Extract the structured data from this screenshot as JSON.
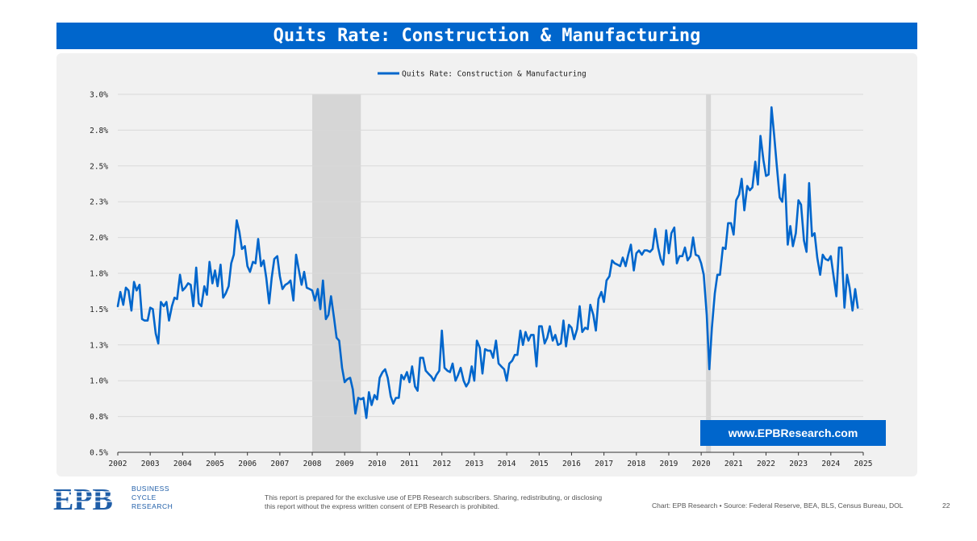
{
  "header": {
    "title": "Quits Rate: Construction & Manufacturing"
  },
  "chart_data": {
    "type": "line",
    "legend": {
      "position": "top-center",
      "entries": [
        "Quits Rate: Construction & Manufacturing"
      ]
    },
    "grid": true,
    "ylim": [
      0.5,
      3.0
    ],
    "xlim": [
      2002,
      2025
    ],
    "y_ticks": [
      "0.5%",
      "0.8%",
      "1.0%",
      "1.3%",
      "1.5%",
      "1.8%",
      "2.0%",
      "2.3%",
      "2.5%",
      "2.8%",
      "3.0%"
    ],
    "x_ticks": [
      "2002",
      "2003",
      "2004",
      "2005",
      "2006",
      "2007",
      "2008",
      "2009",
      "2010",
      "2011",
      "2012",
      "2013",
      "2014",
      "2015",
      "2016",
      "2017",
      "2018",
      "2019",
      "2020",
      "2021",
      "2022",
      "2023",
      "2024",
      "2025"
    ],
    "recessions": [
      [
        2008.0,
        2009.5
      ],
      [
        2020.15,
        2020.3
      ]
    ],
    "series": [
      {
        "name": "Quits Rate: Construction & Manufacturing",
        "color": "#0066cc",
        "points": [
          [
            2002.0,
            1.52
          ],
          [
            2002.08,
            1.62
          ],
          [
            2002.17,
            1.53
          ],
          [
            2002.25,
            1.65
          ],
          [
            2002.33,
            1.63
          ],
          [
            2002.42,
            1.49
          ],
          [
            2002.5,
            1.69
          ],
          [
            2002.58,
            1.63
          ],
          [
            2002.67,
            1.67
          ],
          [
            2002.75,
            1.43
          ],
          [
            2002.83,
            1.42
          ],
          [
            2002.92,
            1.42
          ],
          [
            2003.0,
            1.51
          ],
          [
            2003.08,
            1.5
          ],
          [
            2003.17,
            1.33
          ],
          [
            2003.25,
            1.26
          ],
          [
            2003.33,
            1.55
          ],
          [
            2003.42,
            1.52
          ],
          [
            2003.5,
            1.55
          ],
          [
            2003.58,
            1.42
          ],
          [
            2003.67,
            1.52
          ],
          [
            2003.75,
            1.58
          ],
          [
            2003.83,
            1.57
          ],
          [
            2003.92,
            1.74
          ],
          [
            2004.0,
            1.63
          ],
          [
            2004.08,
            1.65
          ],
          [
            2004.17,
            1.68
          ],
          [
            2004.25,
            1.67
          ],
          [
            2004.33,
            1.52
          ],
          [
            2004.42,
            1.79
          ],
          [
            2004.5,
            1.54
          ],
          [
            2004.58,
            1.52
          ],
          [
            2004.67,
            1.66
          ],
          [
            2004.75,
            1.6
          ],
          [
            2004.83,
            1.83
          ],
          [
            2004.92,
            1.68
          ],
          [
            2005.0,
            1.77
          ],
          [
            2005.08,
            1.66
          ],
          [
            2005.17,
            1.81
          ],
          [
            2005.25,
            1.58
          ],
          [
            2005.33,
            1.61
          ],
          [
            2005.42,
            1.66
          ],
          [
            2005.5,
            1.82
          ],
          [
            2005.58,
            1.88
          ],
          [
            2005.67,
            2.12
          ],
          [
            2005.75,
            2.04
          ],
          [
            2005.83,
            1.92
          ],
          [
            2005.92,
            1.94
          ],
          [
            2006.0,
            1.8
          ],
          [
            2006.08,
            1.76
          ],
          [
            2006.17,
            1.83
          ],
          [
            2006.25,
            1.82
          ],
          [
            2006.33,
            1.99
          ],
          [
            2006.42,
            1.8
          ],
          [
            2006.5,
            1.84
          ],
          [
            2006.58,
            1.72
          ],
          [
            2006.67,
            1.54
          ],
          [
            2006.75,
            1.72
          ],
          [
            2006.83,
            1.85
          ],
          [
            2006.92,
            1.87
          ],
          [
            2007.0,
            1.73
          ],
          [
            2007.08,
            1.64
          ],
          [
            2007.17,
            1.67
          ],
          [
            2007.25,
            1.68
          ],
          [
            2007.33,
            1.7
          ],
          [
            2007.42,
            1.56
          ],
          [
            2007.5,
            1.88
          ],
          [
            2007.58,
            1.78
          ],
          [
            2007.67,
            1.67
          ],
          [
            2007.75,
            1.76
          ],
          [
            2007.83,
            1.65
          ],
          [
            2007.92,
            1.64
          ],
          [
            2008.0,
            1.63
          ],
          [
            2008.08,
            1.56
          ],
          [
            2008.17,
            1.64
          ],
          [
            2008.25,
            1.5
          ],
          [
            2008.33,
            1.7
          ],
          [
            2008.42,
            1.43
          ],
          [
            2008.5,
            1.46
          ],
          [
            2008.58,
            1.59
          ],
          [
            2008.67,
            1.44
          ],
          [
            2008.75,
            1.3
          ],
          [
            2008.83,
            1.28
          ],
          [
            2008.92,
            1.09
          ],
          [
            2009.0,
            0.99
          ],
          [
            2009.08,
            1.01
          ],
          [
            2009.17,
            1.02
          ],
          [
            2009.25,
            0.94
          ],
          [
            2009.33,
            0.77
          ],
          [
            2009.42,
            0.88
          ],
          [
            2009.5,
            0.87
          ],
          [
            2009.58,
            0.88
          ],
          [
            2009.67,
            0.74
          ],
          [
            2009.75,
            0.92
          ],
          [
            2009.83,
            0.83
          ],
          [
            2009.92,
            0.9
          ],
          [
            2010.0,
            0.87
          ],
          [
            2010.08,
            1.02
          ],
          [
            2010.17,
            1.06
          ],
          [
            2010.25,
            1.08
          ],
          [
            2010.33,
            1.02
          ],
          [
            2010.42,
            0.89
          ],
          [
            2010.5,
            0.84
          ],
          [
            2010.58,
            0.88
          ],
          [
            2010.67,
            0.88
          ],
          [
            2010.75,
            1.04
          ],
          [
            2010.83,
            1.01
          ],
          [
            2010.92,
            1.06
          ],
          [
            2011.0,
            0.99
          ],
          [
            2011.08,
            1.1
          ],
          [
            2011.17,
            0.96
          ],
          [
            2011.25,
            0.93
          ],
          [
            2011.33,
            1.16
          ],
          [
            2011.42,
            1.16
          ],
          [
            2011.5,
            1.07
          ],
          [
            2011.58,
            1.05
          ],
          [
            2011.67,
            1.03
          ],
          [
            2011.75,
            1.0
          ],
          [
            2011.83,
            1.04
          ],
          [
            2011.92,
            1.07
          ],
          [
            2012.0,
            1.35
          ],
          [
            2012.08,
            1.09
          ],
          [
            2012.17,
            1.07
          ],
          [
            2012.25,
            1.06
          ],
          [
            2012.33,
            1.12
          ],
          [
            2012.42,
            1.0
          ],
          [
            2012.5,
            1.04
          ],
          [
            2012.58,
            1.09
          ],
          [
            2012.67,
            1.0
          ],
          [
            2012.75,
            0.96
          ],
          [
            2012.83,
            0.99
          ],
          [
            2012.92,
            1.1
          ],
          [
            2013.0,
            1.0
          ],
          [
            2013.08,
            1.28
          ],
          [
            2013.17,
            1.23
          ],
          [
            2013.25,
            1.05
          ],
          [
            2013.33,
            1.22
          ],
          [
            2013.42,
            1.21
          ],
          [
            2013.5,
            1.21
          ],
          [
            2013.58,
            1.16
          ],
          [
            2013.67,
            1.28
          ],
          [
            2013.75,
            1.12
          ],
          [
            2013.83,
            1.1
          ],
          [
            2013.92,
            1.08
          ],
          [
            2014.0,
            1.0
          ],
          [
            2014.08,
            1.12
          ],
          [
            2014.17,
            1.14
          ],
          [
            2014.25,
            1.18
          ],
          [
            2014.33,
            1.18
          ],
          [
            2014.42,
            1.35
          ],
          [
            2014.5,
            1.25
          ],
          [
            2014.58,
            1.34
          ],
          [
            2014.67,
            1.28
          ],
          [
            2014.75,
            1.32
          ],
          [
            2014.83,
            1.32
          ],
          [
            2014.92,
            1.1
          ],
          [
            2015.0,
            1.38
          ],
          [
            2015.08,
            1.38
          ],
          [
            2015.17,
            1.26
          ],
          [
            2015.25,
            1.3
          ],
          [
            2015.33,
            1.38
          ],
          [
            2015.42,
            1.28
          ],
          [
            2015.5,
            1.32
          ],
          [
            2015.58,
            1.25
          ],
          [
            2015.67,
            1.26
          ],
          [
            2015.75,
            1.42
          ],
          [
            2015.83,
            1.24
          ],
          [
            2015.92,
            1.39
          ],
          [
            2016.0,
            1.37
          ],
          [
            2016.08,
            1.29
          ],
          [
            2016.17,
            1.36
          ],
          [
            2016.25,
            1.52
          ],
          [
            2016.33,
            1.34
          ],
          [
            2016.42,
            1.37
          ],
          [
            2016.5,
            1.36
          ],
          [
            2016.58,
            1.53
          ],
          [
            2016.67,
            1.46
          ],
          [
            2016.75,
            1.35
          ],
          [
            2016.83,
            1.57
          ],
          [
            2016.92,
            1.62
          ],
          [
            2017.0,
            1.55
          ],
          [
            2017.08,
            1.7
          ],
          [
            2017.17,
            1.73
          ],
          [
            2017.25,
            1.84
          ],
          [
            2017.33,
            1.82
          ],
          [
            2017.42,
            1.81
          ],
          [
            2017.5,
            1.8
          ],
          [
            2017.58,
            1.86
          ],
          [
            2017.67,
            1.8
          ],
          [
            2017.75,
            1.88
          ],
          [
            2017.83,
            1.95
          ],
          [
            2017.92,
            1.77
          ],
          [
            2018.0,
            1.89
          ],
          [
            2018.08,
            1.91
          ],
          [
            2018.17,
            1.88
          ],
          [
            2018.25,
            1.91
          ],
          [
            2018.33,
            1.91
          ],
          [
            2018.42,
            1.9
          ],
          [
            2018.5,
            1.92
          ],
          [
            2018.58,
            2.06
          ],
          [
            2018.67,
            1.93
          ],
          [
            2018.75,
            1.85
          ],
          [
            2018.83,
            1.81
          ],
          [
            2018.92,
            2.05
          ],
          [
            2019.0,
            1.89
          ],
          [
            2019.08,
            2.03
          ],
          [
            2019.17,
            2.07
          ],
          [
            2019.25,
            1.82
          ],
          [
            2019.33,
            1.87
          ],
          [
            2019.42,
            1.87
          ],
          [
            2019.5,
            1.93
          ],
          [
            2019.58,
            1.84
          ],
          [
            2019.67,
            1.87
          ],
          [
            2019.75,
            2.0
          ],
          [
            2019.83,
            1.88
          ],
          [
            2019.92,
            1.87
          ],
          [
            2020.0,
            1.82
          ],
          [
            2020.08,
            1.74
          ],
          [
            2020.17,
            1.46
          ],
          [
            2020.25,
            1.08
          ],
          [
            2020.33,
            1.37
          ],
          [
            2020.42,
            1.61
          ],
          [
            2020.5,
            1.74
          ],
          [
            2020.58,
            1.74
          ],
          [
            2020.67,
            1.93
          ],
          [
            2020.75,
            1.92
          ],
          [
            2020.83,
            2.1
          ],
          [
            2020.92,
            2.1
          ],
          [
            2021.0,
            2.02
          ],
          [
            2021.08,
            2.26
          ],
          [
            2021.17,
            2.3
          ],
          [
            2021.25,
            2.41
          ],
          [
            2021.33,
            2.19
          ],
          [
            2021.42,
            2.36
          ],
          [
            2021.5,
            2.33
          ],
          [
            2021.58,
            2.35
          ],
          [
            2021.67,
            2.53
          ],
          [
            2021.75,
            2.37
          ],
          [
            2021.83,
            2.71
          ],
          [
            2021.92,
            2.54
          ],
          [
            2022.0,
            2.43
          ],
          [
            2022.08,
            2.44
          ],
          [
            2022.17,
            2.91
          ],
          [
            2022.25,
            2.72
          ],
          [
            2022.33,
            2.51
          ],
          [
            2022.42,
            2.28
          ],
          [
            2022.5,
            2.25
          ],
          [
            2022.58,
            2.44
          ],
          [
            2022.67,
            1.95
          ],
          [
            2022.75,
            2.08
          ],
          [
            2022.83,
            1.94
          ],
          [
            2022.92,
            2.03
          ],
          [
            2023.0,
            2.26
          ],
          [
            2023.08,
            2.23
          ],
          [
            2023.17,
            1.98
          ],
          [
            2023.25,
            1.9
          ],
          [
            2023.33,
            2.38
          ],
          [
            2023.42,
            2.01
          ],
          [
            2023.5,
            2.03
          ],
          [
            2023.58,
            1.86
          ],
          [
            2023.67,
            1.74
          ],
          [
            2023.75,
            1.88
          ],
          [
            2023.83,
            1.85
          ],
          [
            2023.92,
            1.84
          ],
          [
            2024.0,
            1.87
          ],
          [
            2024.08,
            1.74
          ],
          [
            2024.17,
            1.59
          ],
          [
            2024.25,
            1.93
          ],
          [
            2024.33,
            1.93
          ],
          [
            2024.42,
            1.51
          ],
          [
            2024.5,
            1.74
          ],
          [
            2024.58,
            1.65
          ],
          [
            2024.67,
            1.49
          ],
          [
            2024.75,
            1.64
          ],
          [
            2024.83,
            1.51
          ]
        ]
      }
    ]
  },
  "watermark": "www.EPBResearch.com",
  "footer": {
    "logo_text": "EPB",
    "brand_lines": [
      "BUSINESS",
      "CYCLE",
      "RESEARCH"
    ],
    "disclaimer": "This report is prepared for the exclusive use of EPB Research subscribers. Sharing, redistributing, or disclosing this report without the express written consent of EPB Research is prohibited.",
    "source": "Chart: EPB Research  •  Source: Federal Reserve, BEA, BLS, Census Bureau, DOL",
    "page_number": "22"
  },
  "colors": {
    "accent": "#0066cc",
    "panel": "#f1f1f1",
    "recession": "#d6d6d6",
    "grid": "#d9d9d9"
  }
}
